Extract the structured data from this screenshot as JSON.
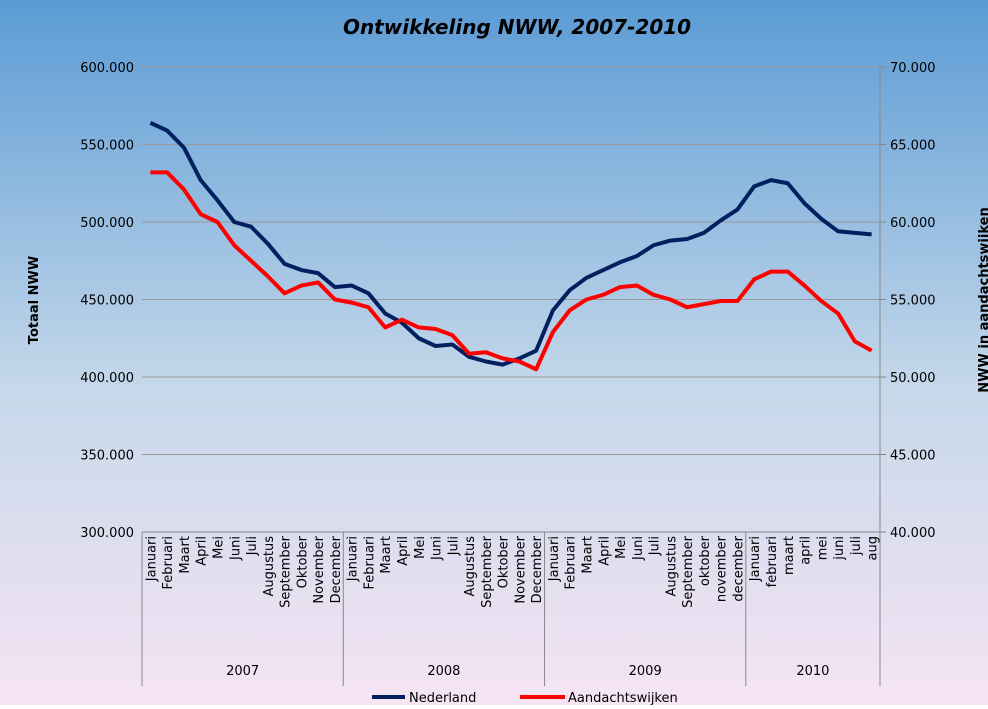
{
  "chart_data": {
    "type": "line",
    "title": "Ontwikkeling NWW, 2007-2010",
    "y_label": "Totaal NWW",
    "y2_label": "NWW in aandachtswijken",
    "categories": [
      "Januari",
      "Februari",
      "Maart",
      "April",
      "Mei",
      "Juni",
      "Juli",
      "Augustus",
      "September",
      "Oktober",
      "November",
      "December",
      "Januari",
      "Februari",
      "Maart",
      "April",
      "Mei",
      "Juni",
      "Juli",
      "Augustus",
      "September",
      "Oktober",
      "November",
      "December",
      "Januari",
      "Februari",
      "Maart",
      "April",
      "Mei",
      "Juni",
      "Juli",
      "Augustus",
      "September",
      "oktober",
      "november",
      "december",
      "Januari",
      "februari",
      "maart",
      "april",
      "mei",
      "juni",
      "juli",
      "aug"
    ],
    "groups": [
      "2007",
      "2008",
      "2009",
      "2010"
    ],
    "series": [
      {
        "name": "Nederland",
        "color": "#002060",
        "axis": "y",
        "values": [
          564000,
          559000,
          548000,
          527000,
          514000,
          500000,
          497000,
          486000,
          473000,
          469000,
          467000,
          458000,
          459000,
          454000,
          441000,
          435000,
          425000,
          420000,
          421000,
          413000,
          410000,
          408000,
          412000,
          417000,
          443000,
          456000,
          464000,
          469000,
          474000,
          478000,
          485000,
          488000,
          489000,
          493000,
          501000,
          508000,
          523000,
          527000,
          525000,
          512000,
          502000,
          494000,
          493000,
          492000
        ]
      },
      {
        "name": "Aandachtswijken",
        "color": "#ff0000",
        "axis": "y2",
        "values": [
          63200,
          63200,
          62100,
          60500,
          60000,
          58500,
          57500,
          56500,
          55400,
          55900,
          56100,
          55000,
          54800,
          54500,
          53200,
          53700,
          53200,
          53100,
          52700,
          51500,
          51600,
          51200,
          51000,
          50500,
          52900,
          54300,
          55000,
          55300,
          55800,
          55900,
          55300,
          55000,
          54500,
          54700,
          54900,
          54900,
          56300,
          56800,
          56800,
          55900,
          54900,
          54100,
          52300,
          51700
        ]
      }
    ],
    "ylim": [
      300000,
      600000
    ],
    "yticks": [
      {
        "value": 300000,
        "label": "300.000"
      },
      {
        "value": 350000,
        "label": "350.000"
      },
      {
        "value": 400000,
        "label": "400.000"
      },
      {
        "value": 450000,
        "label": "450.000"
      },
      {
        "value": 500000,
        "label": "500.000"
      },
      {
        "value": 550000,
        "label": "550.000"
      },
      {
        "value": 600000,
        "label": "600.000"
      }
    ],
    "y2lim": [
      40000,
      70000
    ],
    "y2ticks": [
      {
        "value": 40000,
        "label": "40.000"
      },
      {
        "value": 45000,
        "label": "45.000"
      },
      {
        "value": 50000,
        "label": "50.000"
      },
      {
        "value": 55000,
        "label": "55.000"
      },
      {
        "value": 60000,
        "label": "60.000"
      },
      {
        "value": 65000,
        "label": "65.000"
      },
      {
        "value": 70000,
        "label": "70.000"
      }
    ],
    "grid": true,
    "legend": "bottom"
  }
}
